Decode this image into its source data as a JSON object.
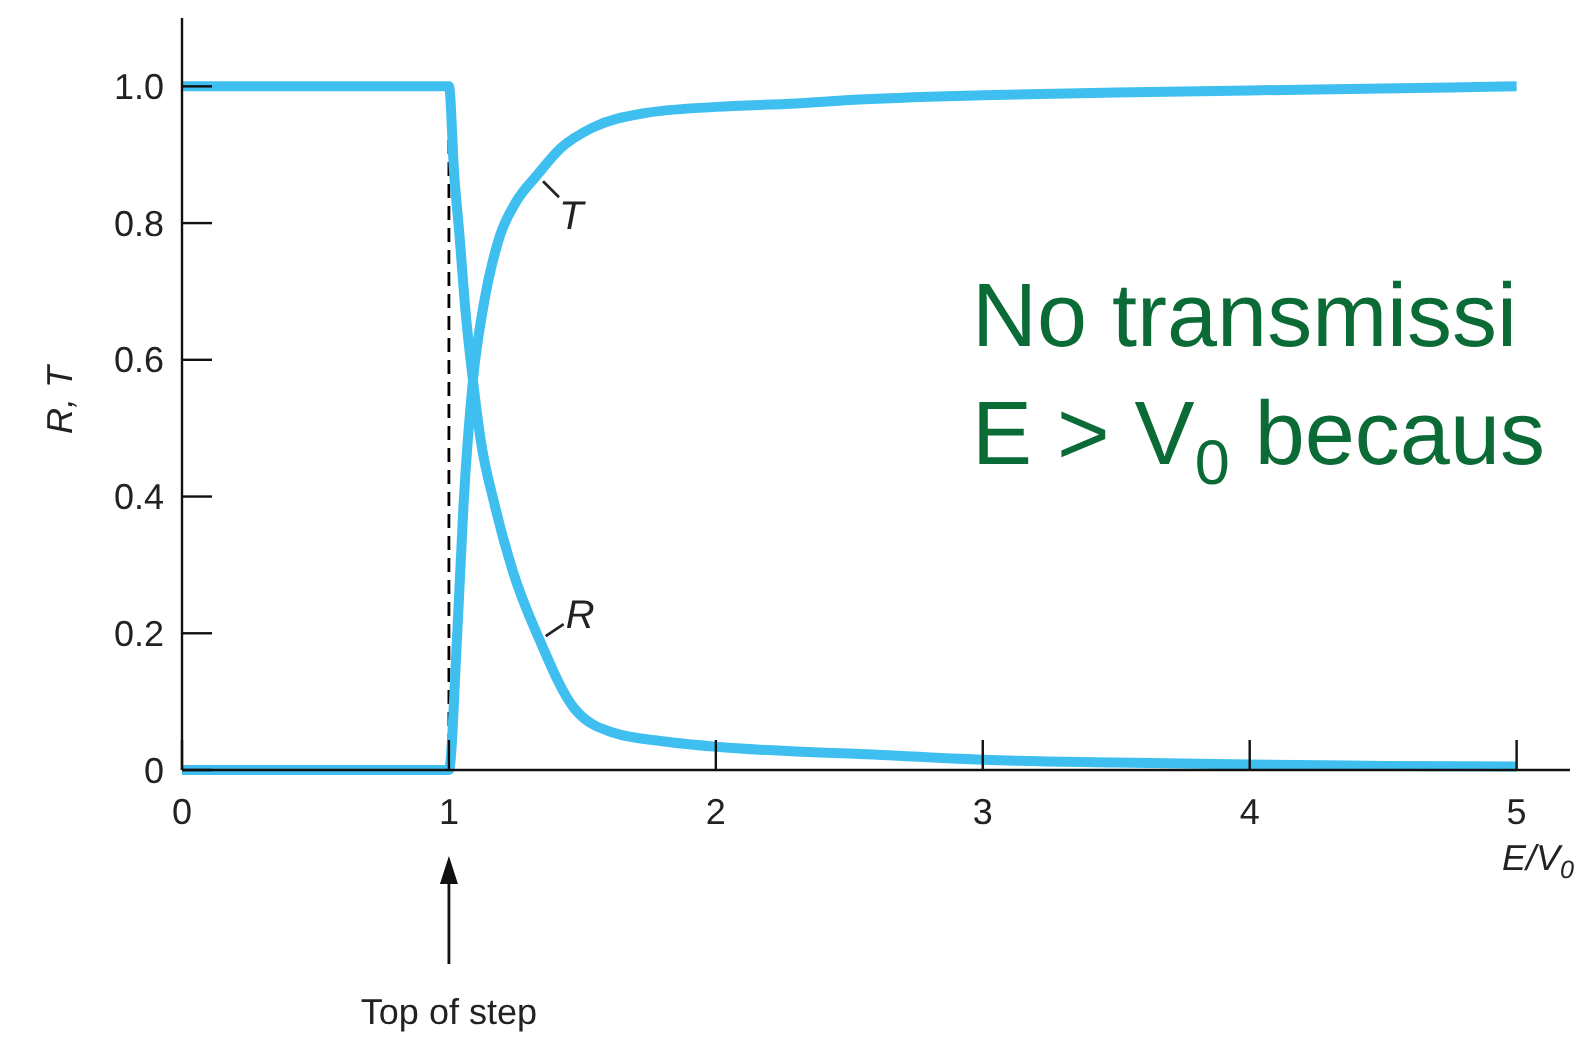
{
  "chart_data": {
    "type": "line",
    "xlabel": "E/V$_{0}$",
    "ylabel": "R, T",
    "xlim": [
      0,
      5.2
    ],
    "ylim": [
      0,
      1.1
    ],
    "xticks": [
      0,
      1,
      2,
      3,
      4,
      5
    ],
    "yticks": [
      0,
      0.2,
      0.4,
      0.6,
      0.8,
      {
        "value": 1,
        "label": "1.0"
      }
    ],
    "line_style": "solid",
    "series": [
      {
        "name": "T",
        "color": "#3fbfef",
        "x": [
          0,
          1,
          1.03,
          1.055,
          1.09,
          1.13,
          1.19,
          1.25,
          1.33,
          1.42,
          1.54,
          1.72,
          2.0,
          2.3,
          2.5,
          3.0,
          3.5,
          4.0,
          4.5,
          5.0
        ],
        "values": [
          0,
          0,
          0.19,
          0.39,
          0.57,
          0.68,
          0.78,
          0.83,
          0.87,
          0.91,
          0.94,
          0.96,
          0.97,
          0.975,
          0.98,
          0.987,
          0.991,
          0.994,
          0.997,
          1.0
        ]
      },
      {
        "name": "R",
        "color": "#3fbfef",
        "x": [
          0,
          1,
          1.02,
          1.04,
          1.06,
          1.09,
          1.12,
          1.17,
          1.24,
          1.34,
          1.47,
          1.62,
          1.8,
          2.0,
          2.3,
          2.5,
          3.0,
          3.5,
          4.0,
          4.5,
          5.0
        ],
        "values": [
          1,
          1,
          0.87,
          0.78,
          0.68,
          0.57,
          0.48,
          0.39,
          0.29,
          0.19,
          0.09,
          0.054,
          0.042,
          0.034,
          0.027,
          0.024,
          0.015,
          0.011,
          0.008,
          0.006,
          0.005
        ]
      }
    ],
    "ref_lines": [
      {
        "axis": "x",
        "value": 1,
        "color": "#000000",
        "line_style": "dashed"
      }
    ],
    "annotations": [
      "No transmissi",
      "E > V$_{0}$ becaus",
      "Top of step"
    ]
  }
}
